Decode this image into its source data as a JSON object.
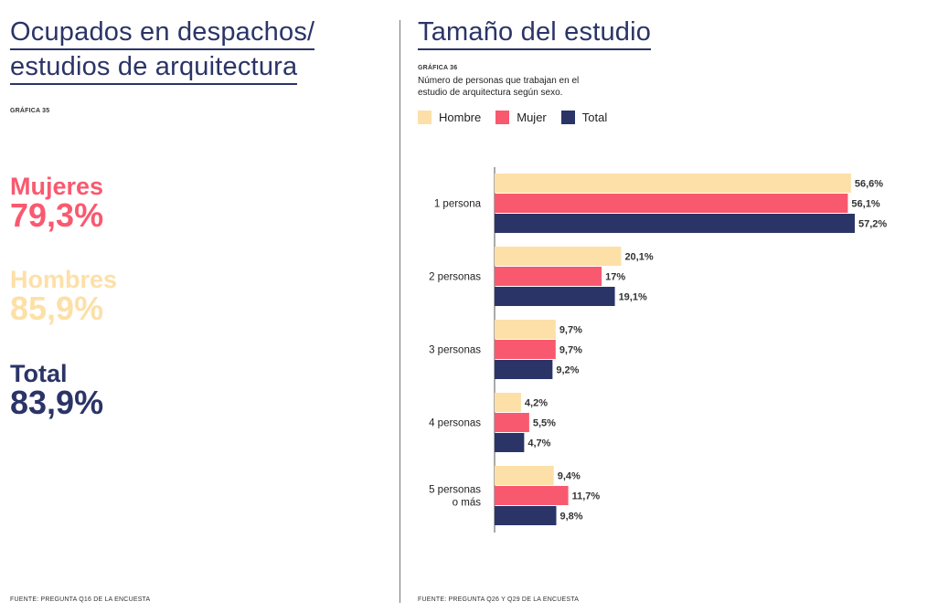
{
  "left": {
    "title_line1": "Ocupados en despachos/",
    "title_line2": "estudios de arquitectura",
    "grafica": "GRÁFICA 35",
    "stats": [
      {
        "label": "Mujeres",
        "value": "79,3%",
        "color": "#f9596f"
      },
      {
        "label": "Hombres",
        "value": "85,9%",
        "color": "#fde0a8"
      },
      {
        "label": "Total",
        "value": "83,9%",
        "color": "#2b3467"
      }
    ],
    "source": "FUENTE: PREGUNTA Q16 DE LA ENCUESTA"
  },
  "right": {
    "title": "Tamaño del estudio",
    "grafica": "GRÁFICA 36",
    "subtitle_line1": "Número de personas que trabajan en el",
    "subtitle_line2": "estudio de arquitectura según sexo.",
    "source": "FUENTE: PREGUNTA Q26 Y Q29 DE LA ENCUESTA"
  },
  "chart_data": {
    "type": "bar",
    "orientation": "horizontal",
    "categories": [
      "1 persona",
      "2 personas",
      "3 personas",
      "4 personas",
      "5 personas\no más"
    ],
    "series": [
      {
        "name": "Hombre",
        "color": "#fde0a8",
        "values": [
          56.6,
          20.1,
          9.7,
          4.2,
          9.4
        ],
        "labels": [
          "56,6%",
          "20,1%",
          "9,7%",
          "4,2%",
          "9,4%"
        ]
      },
      {
        "name": "Mujer",
        "color": "#f9596f",
        "values": [
          56.1,
          17,
          9.7,
          5.5,
          11.7
        ],
        "labels": [
          "56,1%",
          "17%",
          "9,7%",
          "5,5%",
          "11,7%"
        ]
      },
      {
        "name": "Total",
        "color": "#2b3467",
        "values": [
          57.2,
          19.1,
          9.2,
          4.7,
          9.8
        ],
        "labels": [
          "57,2%",
          "19,1%",
          "9,2%",
          "4,7%",
          "9,8%"
        ]
      }
    ],
    "xlim": [
      0,
      57.2
    ],
    "legend": "top-left",
    "grid": false
  }
}
